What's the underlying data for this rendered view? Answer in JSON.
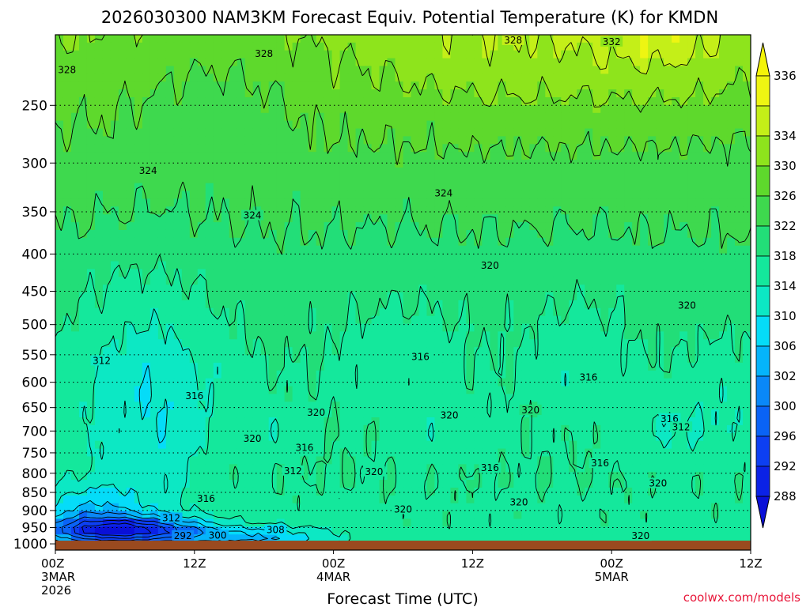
{
  "chart_data": {
    "type": "contour",
    "title": "2026030300 NAM3KM Forecast Equiv. Potential Temperature (K) for KMDN",
    "xlabel": "Forecast Time (UTC)",
    "ylabel": "",
    "x_ticks": [
      {
        "hours": 0,
        "label": "00Z",
        "sub": "3MAR",
        "sub2": "2026"
      },
      {
        "hours": 12,
        "label": "12Z",
        "sub": "",
        "sub2": ""
      },
      {
        "hours": 24,
        "label": "00Z",
        "sub": "4MAR",
        "sub2": ""
      },
      {
        "hours": 36,
        "label": "12Z",
        "sub": "",
        "sub2": ""
      },
      {
        "hours": 48,
        "label": "00Z",
        "sub": "5MAR",
        "sub2": ""
      },
      {
        "hours": 60,
        "label": "12Z",
        "sub": "",
        "sub2": ""
      }
    ],
    "xlim": [
      0,
      60
    ],
    "y_ticks": [
      250,
      300,
      350,
      400,
      450,
      500,
      550,
      600,
      650,
      700,
      750,
      800,
      850,
      900,
      950,
      1000
    ],
    "ylim_hpa": [
      200,
      1020
    ],
    "surface_pressure_hpa": 990,
    "colorbar": {
      "levels": [
        288,
        292,
        296,
        300,
        302,
        306,
        310,
        314,
        318,
        322,
        326,
        330,
        334,
        336
      ],
      "colors": [
        "#0b22e6",
        "#0d3ff2",
        "#0a63f6",
        "#0a88f8",
        "#05b4fa",
        "#05dcf8",
        "#0ce8c4",
        "#14e89c",
        "#22de78",
        "#3ed94e",
        "#5ed92c",
        "#8ee41c",
        "#c4ef18",
        "#eef512"
      ],
      "arrow_top_color": "#f4f408",
      "arrow_bottom_color": "#0a10d8"
    },
    "field_levels": [
      {
        "p_hpa": 200,
        "theta_e": 330
      },
      {
        "p_hpa": 250,
        "theta_e": 327
      },
      {
        "p_hpa": 300,
        "theta_e": 325
      },
      {
        "p_hpa": 350,
        "theta_e": 323
      },
      {
        "p_hpa": 400,
        "theta_e": 321
      },
      {
        "p_hpa": 450,
        "theta_e": 320
      },
      {
        "p_hpa": 500,
        "theta_e": 319
      },
      {
        "p_hpa": 600,
        "theta_e": 318
      },
      {
        "p_hpa": 700,
        "theta_e": 318
      },
      {
        "p_hpa": 800,
        "theta_e": 318
      },
      {
        "p_hpa": 900,
        "theta_e": 317
      },
      {
        "p_hpa": 1000,
        "theta_e": 316
      }
    ],
    "features": [
      {
        "t": 8,
        "p": 650,
        "w": 6,
        "h": 220,
        "amp": -8
      },
      {
        "t": 3,
        "p": 900,
        "w": 5,
        "h": 80,
        "amp": -10
      },
      {
        "t": 6,
        "p": 960,
        "w": 7,
        "h": 40,
        "amp": -26
      },
      {
        "t": 18,
        "p": 980,
        "w": 6,
        "h": 30,
        "amp": -10
      },
      {
        "t": 14,
        "p": 250,
        "w": 6,
        "h": 60,
        "amp": -3
      },
      {
        "t": 19,
        "p": 700,
        "w": 3,
        "h": 60,
        "amp": -3
      },
      {
        "t": 34,
        "p": 720,
        "w": 4,
        "h": 60,
        "amp": -3
      },
      {
        "t": 30,
        "p": 560,
        "w": 5,
        "h": 120,
        "amp": -3
      },
      {
        "t": 45,
        "p": 560,
        "w": 4,
        "h": 120,
        "amp": -3
      },
      {
        "t": 53,
        "p": 700,
        "w": 4,
        "h": 90,
        "amp": -4
      },
      {
        "t": 58,
        "p": 650,
        "w": 3,
        "h": 120,
        "amp": -3
      },
      {
        "t": 38,
        "p": 200,
        "w": 12,
        "h": 60,
        "amp": 4
      },
      {
        "t": 53,
        "p": 200,
        "w": 8,
        "h": 50,
        "amp": 5
      }
    ],
    "contour_labels": [
      {
        "text": "328",
        "t": 18.0,
        "p": 213
      },
      {
        "text": "328",
        "t": 39.5,
        "p": 204
      },
      {
        "text": "332",
        "t": 48.0,
        "p": 205
      },
      {
        "text": "328",
        "t": 1.0,
        "p": 224
      },
      {
        "text": "324",
        "t": 8.0,
        "p": 308
      },
      {
        "text": "324",
        "t": 17.0,
        "p": 355
      },
      {
        "text": "324",
        "t": 33.5,
        "p": 331
      },
      {
        "text": "320",
        "t": 37.5,
        "p": 416
      },
      {
        "text": "320",
        "t": 54.5,
        "p": 472
      },
      {
        "text": "316",
        "t": 31.5,
        "p": 555
      },
      {
        "text": "316",
        "t": 46.0,
        "p": 592
      },
      {
        "text": "312",
        "t": 4.0,
        "p": 562
      },
      {
        "text": "316",
        "t": 12.0,
        "p": 628
      },
      {
        "text": "320",
        "t": 22.5,
        "p": 662
      },
      {
        "text": "320",
        "t": 34.0,
        "p": 668
      },
      {
        "text": "320",
        "t": 41.0,
        "p": 657
      },
      {
        "text": "316",
        "t": 53.0,
        "p": 675
      },
      {
        "text": "312",
        "t": 54.0,
        "p": 693
      },
      {
        "text": "320",
        "t": 17.0,
        "p": 719
      },
      {
        "text": "316",
        "t": 21.5,
        "p": 740
      },
      {
        "text": "312",
        "t": 20.5,
        "p": 796
      },
      {
        "text": "320",
        "t": 27.5,
        "p": 798
      },
      {
        "text": "316",
        "t": 37.5,
        "p": 789
      },
      {
        "text": "316",
        "t": 47.0,
        "p": 777
      },
      {
        "text": "320",
        "t": 52.0,
        "p": 828
      },
      {
        "text": "316",
        "t": 13.0,
        "p": 869
      },
      {
        "text": "320",
        "t": 40.0,
        "p": 879
      },
      {
        "text": "320",
        "t": 30.0,
        "p": 899
      },
      {
        "text": "312",
        "t": 10.0,
        "p": 924
      },
      {
        "text": "292",
        "t": 11.0,
        "p": 977
      },
      {
        "text": "300",
        "t": 14.0,
        "p": 976
      },
      {
        "text": "308",
        "t": 19.0,
        "p": 960
      },
      {
        "text": "320",
        "t": 50.5,
        "p": 978
      }
    ]
  },
  "credit": "coolwx.com/models"
}
